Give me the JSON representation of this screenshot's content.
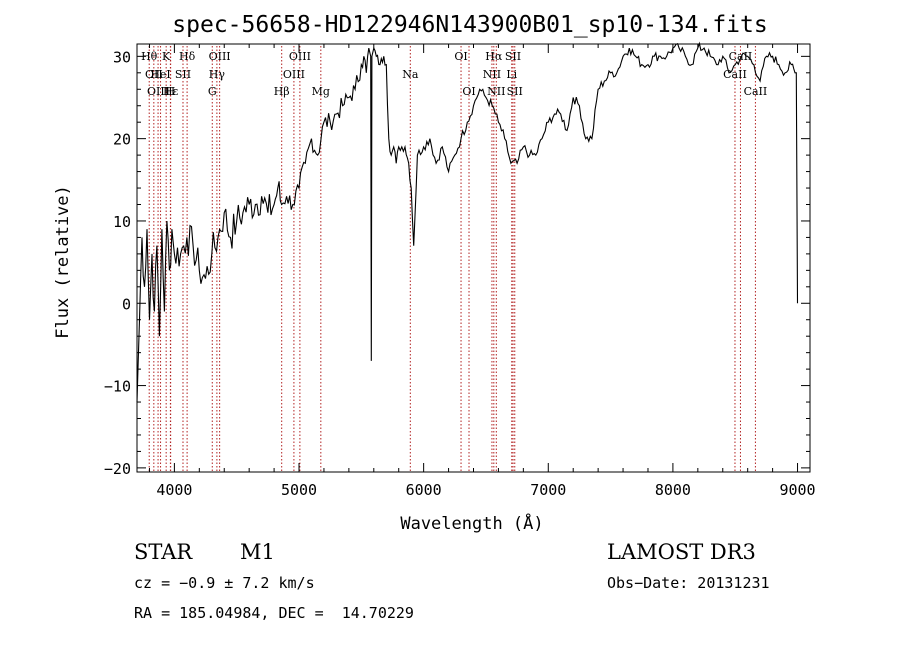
{
  "chart_data": {
    "type": "line",
    "title": "spec-56658-HD122946N143900B01_sp10-134.fits",
    "xlabel": "Wavelength (Å)",
    "ylabel": "Flux (relative)",
    "xlim": [
      3700,
      9100
    ],
    "ylim": [
      -20.5,
      31.5
    ],
    "xticks": [
      4000,
      5000,
      6000,
      7000,
      8000,
      9000
    ],
    "yticks": [
      -20,
      -10,
      0,
      10,
      20,
      30
    ],
    "grid": false,
    "series": [
      {
        "color": "#000000",
        "x": [
          3700,
          3720,
          3740,
          3760,
          3780,
          3800,
          3820,
          3840,
          3860,
          3880,
          3900,
          3920,
          3940,
          3960,
          3980,
          4000,
          4050,
          4100,
          4150,
          4200,
          4250,
          4300,
          4350,
          4400,
          4450,
          4500,
          4550,
          4600,
          4650,
          4700,
          4750,
          4800,
          4830,
          4860,
          4900,
          4950,
          5000,
          5050,
          5100,
          5150,
          5200,
          5250,
          5300,
          5350,
          5400,
          5450,
          5500,
          5520,
          5540,
          5560,
          5575,
          5580,
          5585,
          5600,
          5620,
          5650,
          5680,
          5700,
          5720,
          5740,
          5760,
          5780,
          5800,
          5850,
          5880,
          5900,
          5920,
          5950,
          6000,
          6050,
          6100,
          6150,
          6200,
          6250,
          6300,
          6350,
          6400,
          6450,
          6500,
          6550,
          6600,
          6650,
          6700,
          6750,
          6800,
          6850,
          6900,
          6950,
          7000,
          7050,
          7100,
          7150,
          7200,
          7250,
          7300,
          7350,
          7400,
          7450,
          7500,
          7550,
          7600,
          7650,
          7700,
          7750,
          7800,
          7850,
          7900,
          7950,
          8000,
          8050,
          8100,
          8150,
          8200,
          8250,
          8300,
          8350,
          8400,
          8450,
          8500,
          8550,
          8600,
          8650,
          8700,
          8750,
          8800,
          8850,
          8900,
          8950,
          8980,
          8990,
          9000
        ],
        "y": [
          -12,
          -2,
          8,
          2,
          9,
          -2,
          6,
          -1,
          7,
          -4,
          9,
          -1,
          10,
          4,
          9,
          6,
          6,
          8,
          7,
          4,
          3,
          6,
          8,
          11,
          8,
          10,
          11,
          12,
          12,
          13,
          11,
          12,
          14,
          12,
          13,
          12,
          14,
          17,
          20,
          18,
          22,
          22,
          23,
          24,
          25,
          26,
          29,
          30,
          28,
          31,
          30,
          -7,
          30,
          31,
          30,
          29,
          30,
          29,
          20,
          18,
          19,
          17,
          19,
          19,
          17,
          14,
          7,
          18,
          19,
          20,
          17,
          19,
          16,
          18,
          20,
          22,
          24,
          26,
          25,
          24,
          22,
          20,
          17,
          17,
          19,
          18,
          18,
          20,
          22,
          23,
          23,
          21,
          25,
          24,
          20,
          20,
          26,
          27,
          28,
          28,
          30,
          31,
          30,
          29,
          29,
          30,
          30,
          30,
          31,
          31,
          30,
          29,
          31,
          31,
          30,
          29,
          30,
          28,
          29,
          30,
          30,
          29,
          27,
          30,
          30,
          29,
          28,
          29,
          28,
          28,
          0
        ]
      }
    ],
    "line_markers": [
      {
        "wavelength": 3798,
        "label": "Hθ",
        "row": 1
      },
      {
        "wavelength": 3835,
        "label": "OII",
        "row": 2
      },
      {
        "wavelength": 3869,
        "label": "OIII",
        "row": 3
      },
      {
        "wavelength": 3889,
        "label": "HeI",
        "row": 2
      },
      {
        "wavelength": 3934,
        "label": "K",
        "row": 1
      },
      {
        "wavelength": 3968,
        "label": "H",
        "row": 3
      },
      {
        "wavelength": 3970,
        "label": "Hε",
        "row": 3
      },
      {
        "wavelength": 4069,
        "label": "SII",
        "row": 2
      },
      {
        "wavelength": 4102,
        "label": "Hδ",
        "row": 1
      },
      {
        "wavelength": 4304,
        "label": "G",
        "row": 3
      },
      {
        "wavelength": 4341,
        "label": "Hγ",
        "row": 2
      },
      {
        "wavelength": 4363,
        "label": "OIII",
        "row": 1
      },
      {
        "wavelength": 4861,
        "label": "Hβ",
        "row": 3
      },
      {
        "wavelength": 4959,
        "label": "OIII",
        "row": 2
      },
      {
        "wavelength": 5007,
        "label": "OIII",
        "row": 1
      },
      {
        "wavelength": 5175,
        "label": "Mg",
        "row": 3
      },
      {
        "wavelength": 5893,
        "label": "Na",
        "row": 2
      },
      {
        "wavelength": 6300,
        "label": "OI",
        "row": 1
      },
      {
        "wavelength": 6364,
        "label": "OI",
        "row": 3
      },
      {
        "wavelength": 6548,
        "label": "NII",
        "row": 2
      },
      {
        "wavelength": 6563,
        "label": "Hα",
        "row": 1
      },
      {
        "wavelength": 6583,
        "label": "NII",
        "row": 3
      },
      {
        "wavelength": 6707,
        "label": "Li",
        "row": 2
      },
      {
        "wavelength": 6717,
        "label": "SII",
        "row": 1
      },
      {
        "wavelength": 6731,
        "label": "SII",
        "row": 3
      },
      {
        "wavelength": 8498,
        "label": "CaII",
        "row": 2
      },
      {
        "wavelength": 8542,
        "label": "CaII",
        "row": 1
      },
      {
        "wavelength": 8662,
        "label": "CaII",
        "row": 3
      }
    ]
  },
  "info": {
    "object_class": "STAR",
    "subclass": "M1",
    "survey": "LAMOST DR3",
    "cz": "cz = −0.9 ± 7.2 km/s",
    "obs_date": "Obs−Date: 20131231",
    "coords": "RA = 185.04984, DEC =  14.70229"
  },
  "colors": {
    "spectrum": "#000000",
    "line_marker": "#b22222",
    "background": "#ffffff"
  }
}
